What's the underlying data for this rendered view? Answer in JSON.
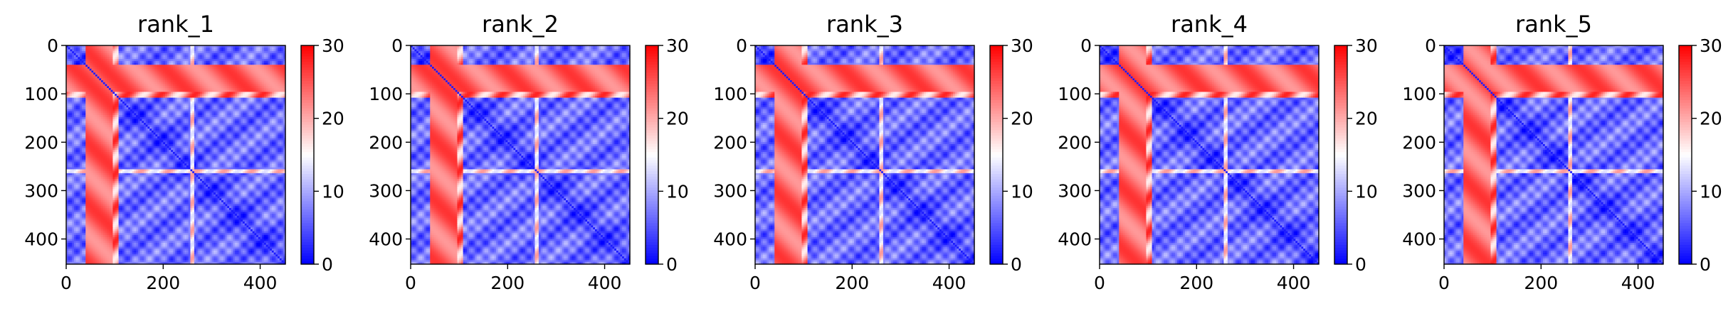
{
  "chart_data": {
    "type": "heatmap",
    "n": 452,
    "colormap": "bwr",
    "vmin": 0,
    "vmax": 30,
    "xticks": [
      0,
      200,
      400
    ],
    "yticks": [
      0,
      100,
      200,
      300,
      400
    ],
    "colorbar_ticks": [
      0,
      10,
      20,
      30
    ],
    "colors": {
      "low": "#0000ff",
      "mid": "#ffffff",
      "high": "#ff0000"
    },
    "regions": {
      "loop_band": [
        42,
        98
      ],
      "linker_band": [
        258,
        266
      ],
      "upper_rows": [
        42,
        110
      ]
    },
    "panels": [
      {
        "title": "rank_1"
      },
      {
        "title": "rank_2"
      },
      {
        "title": "rank_3"
      },
      {
        "title": "rank_4"
      },
      {
        "title": "rank_5"
      }
    ]
  }
}
